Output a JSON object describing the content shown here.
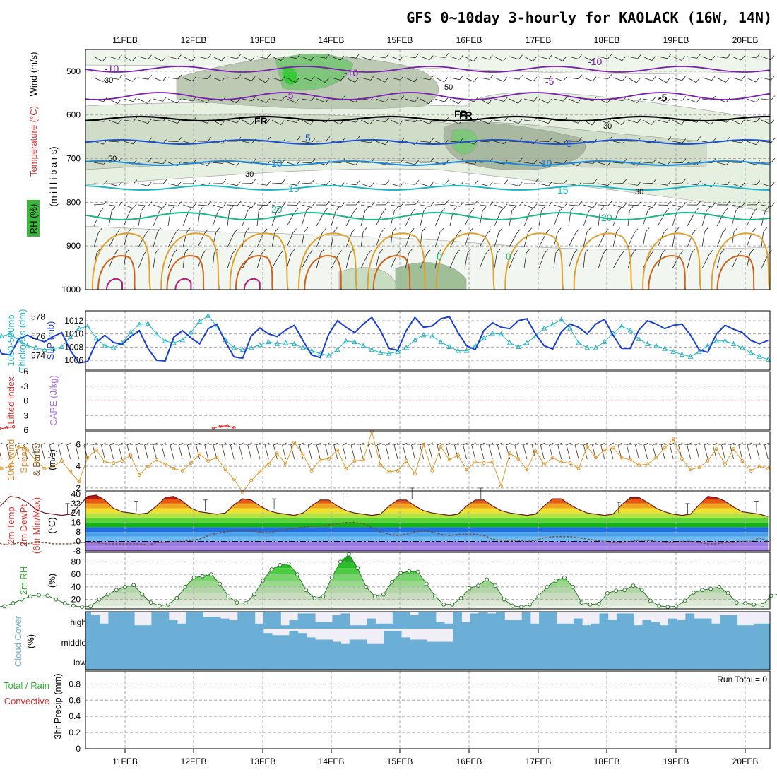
{
  "title": "GFS 0~10day 3-hourly for KAOLACK (16W, 14N)",
  "colors": {
    "purple": "#7a1fb0",
    "blue": "#1b4fd0",
    "midblue": "#1f88d8",
    "cyan": "#1fb4c4",
    "teal": "#19b889",
    "orange": "#e0a030",
    "darkorange": "#d06018",
    "magenta": "#c0187a",
    "slp": "#1b3fd0",
    "thickness": "#28b4c4",
    "wind10": "#e09a30",
    "rh": "#2db82d",
    "cloud": "#6baed6",
    "cloudbg": "#f0eff8",
    "lifted": "#e03030",
    "cape": "#b070e0"
  },
  "chart_data": [
    {
      "type": "contour",
      "panel": "upper-air cross section",
      "ylabels": [
        "Wind (m/s)",
        "Temperature (°C)",
        "RH (%)",
        "(m i l l i b a r s)"
      ],
      "yticks": [
        "500",
        "600",
        "700",
        "800",
        "900",
        "1000"
      ],
      "ylim": [
        1000,
        450
      ],
      "contour_labels": [
        "-10",
        "-10",
        "-10",
        "-5",
        "-5",
        "-5",
        "FR",
        "FR",
        "FR",
        "5",
        "5",
        "10",
        "10",
        "15",
        "15",
        "20",
        "20",
        "30",
        "30",
        "30",
        "30",
        "50",
        "50",
        "0",
        "0"
      ]
    },
    {
      "type": "line",
      "panel": "thickness and sea level pressure",
      "ylabels": [
        "1000-500mb",
        "Thickness (dm)",
        "SLP (mb)"
      ],
      "yticks_left": [
        "578",
        "576",
        "574"
      ],
      "yticks_right": [
        "1012",
        "1010",
        "1008",
        "1006"
      ],
      "ylim_thickness": [
        572.5,
        578.6
      ],
      "ylim_slp": [
        1004.5,
        1013.5
      ],
      "series": [
        {
          "name": "SLP (mb)",
          "values": [
            1009.9,
            1007,
            1006.8,
            1009.2,
            1009.8,
            1009.2,
            1008.8,
            1009.6,
            1010.2,
            1007.5,
            1005.6,
            1005.8,
            1008.7,
            1009.8,
            1008.7,
            1008.4,
            1009.6,
            1010.5,
            1007.8,
            1006,
            1005.9,
            1009.5,
            1010.5,
            1009.4,
            1008.5,
            1010.8,
            1011.5,
            1008.8,
            1006.5,
            1006.3,
            1009.7,
            1010.9,
            1010,
            1009.6,
            1010.6,
            1011.3,
            1009,
            1006.8,
            1006.4,
            1010,
            1012,
            1011,
            1010.2,
            1011.5,
            1012.5,
            1010.5,
            1007.8,
            1007.5,
            1010.5,
            1012.5,
            1011,
            1011.2,
            1012.3,
            1012.6,
            1010.2,
            1008.2,
            1007.6,
            1010.5,
            1011.7,
            1011,
            1010.8,
            1012,
            1012.3,
            1010,
            1008.2,
            1007.7,
            1010.3,
            1011.5,
            1011,
            1010,
            1011.5,
            1012.2,
            1009.8,
            1007.8,
            1007.8,
            1010.6,
            1012,
            1011.5,
            1010.8,
            1011.3,
            1011.5,
            1009.8,
            1007.6,
            1007.2,
            1010,
            1011.3,
            1010.7,
            1010.2,
            1009,
            1008.5,
            1009
          ]
        },
        {
          "name": "1000-500mb Thickness (dm)",
          "values": [
            575.0,
            576.0,
            576.2,
            575.6,
            575.0,
            574.8,
            574.6,
            574.7,
            574.9,
            575.9,
            576.8,
            577.0,
            575.8,
            575.0,
            574.8,
            575.3,
            576.4,
            577.2,
            577.3,
            576.2,
            575.5,
            575.3,
            575.6,
            576.4,
            577.5,
            578.1,
            577.0,
            575.6,
            574.8,
            574.6,
            574.8,
            575.1,
            575.4,
            575.2,
            575.3,
            575.2,
            574.8,
            574.5,
            574.2,
            574.0,
            574.6,
            575.5,
            575.4,
            575.0,
            574.6,
            574.3,
            574.2,
            574.4,
            574.8,
            575.6,
            576.1,
            576.0,
            575.4,
            574.9,
            574.5,
            574.5,
            575.0,
            575.8,
            576.3,
            576.2,
            575.3,
            574.9,
            575.3,
            576.0,
            576.8,
            577.2,
            577.7,
            576.8,
            575.3,
            574.8,
            574.8,
            575.4,
            576.3,
            577.0,
            576.6,
            575.7,
            575.2,
            575.0,
            574.7,
            574.4,
            574.1,
            573.9,
            574.4,
            575.0,
            575.5,
            575.5,
            575.2,
            574.8,
            574.3,
            573.9,
            573.6
          ]
        }
      ]
    },
    {
      "type": "line",
      "panel": "stability",
      "ylabels": [
        "Lifted Index",
        "CAPE (J/kg)"
      ],
      "yticks": [
        "-6",
        "-3",
        "0",
        "3",
        "6"
      ],
      "ylim": [
        6,
        -6
      ],
      "series": [
        {
          "name": "Lifted Index",
          "segments": [
            [
              [
                0.1,
                5.7
              ],
              [
                0.2,
                5.5
              ],
              [
                0.3,
                5.3
              ]
            ],
            [
              [
                3.2,
                5.6
              ],
              [
                3.3,
                5.2
              ],
              [
                3.4,
                5.1
              ],
              [
                3.5,
                5.5
              ]
            ]
          ]
        }
      ]
    },
    {
      "type": "line",
      "panel": "10m wind",
      "ylabels": [
        "10m Wind",
        "Speed",
        "& Barbs",
        "(m/s)"
      ],
      "yticks": [
        "2",
        "4",
        "6"
      ],
      "ylim": [
        1.8,
        7.2
      ],
      "series": [
        {
          "name": "10m Wind Speed",
          "values": [
            4.8,
            3.8,
            4,
            5.8,
            5.5,
            4.5,
            3.8,
            4,
            4.5,
            3.5,
            2.6,
            4.8,
            5.5,
            4.4,
            4.3,
            4.5,
            5,
            3.2,
            4,
            4.6,
            4.2,
            3.8,
            3.6,
            4.3,
            5.1,
            4.5,
            4.8,
            3.7,
            2.8,
            1.6,
            2.7,
            3.5,
            4.2,
            5.2,
            4.2,
            6.2,
            5.1,
            3.6,
            4.6,
            4.7,
            5.5,
            3.8,
            4.5,
            4.6,
            7.2,
            4.1,
            3.5,
            3.6,
            4.5,
            3.3,
            6,
            3.6,
            5.8,
            4.6,
            5,
            3.7,
            4.4,
            4.3,
            4.4,
            2.2,
            5.2,
            4.7,
            3.7,
            5.4,
            4.2,
            4.8,
            4.4,
            4.3,
            3.8,
            5.8,
            4.8,
            5.5,
            5.7,
            4.8,
            4.6,
            4.1,
            4.2,
            4.8,
            5.7,
            6.5,
            4.7,
            3.7,
            3.9,
            4.5,
            5.6,
            4.2,
            5.6,
            4.5,
            3.6,
            4,
            3.8
          ]
        }
      ]
    },
    {
      "type": "area",
      "panel": "2m temperature",
      "ylabels": [
        "2m Temp",
        "2m DewPt",
        "(6hr Min/Max)",
        "(°C)"
      ],
      "yticks": [
        "40",
        "32",
        "24",
        "16",
        "8",
        "0",
        "-8"
      ],
      "ylim": [
        -8,
        42
      ],
      "series": [
        {
          "name": "2m Temp",
          "values": [
            23,
            31,
            38,
            37,
            33,
            27,
            24,
            23,
            22,
            23,
            30,
            38,
            39,
            35,
            28,
            25,
            24,
            23,
            24,
            30,
            37,
            38,
            34,
            28,
            25,
            24,
            23,
            24,
            31,
            36,
            35,
            30,
            26,
            24,
            23,
            22,
            24,
            30,
            35,
            35,
            30,
            26,
            24,
            23,
            22,
            23,
            30,
            35,
            35,
            30,
            26,
            24,
            23,
            22,
            23,
            30,
            35,
            35,
            30,
            26,
            24,
            23,
            22,
            23,
            30,
            36,
            36,
            31,
            27,
            24,
            23,
            22,
            23,
            31,
            37,
            37,
            33,
            28,
            25,
            23,
            22,
            23,
            31,
            38,
            37,
            34,
            29,
            25,
            24,
            23,
            21
          ]
        },
        {
          "name": "2m DewPt",
          "values": [
            0,
            -2,
            -3,
            -1,
            -2,
            -1,
            -1,
            -2,
            -2,
            -2,
            -1,
            -1,
            -1,
            -2,
            -2,
            -2,
            -2,
            -2,
            -3,
            -1,
            -1,
            0,
            0,
            1,
            2,
            5,
            7,
            8,
            9,
            9,
            9,
            8,
            7,
            9,
            10,
            11,
            12,
            13,
            13,
            14,
            15,
            16,
            16,
            15,
            12,
            8,
            6,
            5,
            6,
            8,
            9,
            8,
            6,
            5,
            6,
            6,
            6,
            5,
            2,
            1,
            1,
            1,
            0,
            1,
            3,
            4,
            4,
            4,
            3,
            2,
            1,
            0,
            -1,
            -1,
            0,
            1,
            1,
            0,
            -1,
            -1,
            0,
            0,
            -1,
            -2,
            -2,
            -1,
            -1,
            0,
            0,
            3,
            0
          ]
        }
      ]
    },
    {
      "type": "area",
      "panel": "2m relative humidity",
      "ylabels": [
        "2m RH",
        "(%)"
      ],
      "yticks": [
        "20",
        "40",
        "60",
        "80"
      ],
      "ylim": [
        5,
        95
      ],
      "series": [
        {
          "name": "2m RH",
          "values": [
            10,
            8,
            9,
            14,
            20,
            25,
            27,
            26,
            20,
            14,
            10,
            8,
            9,
            20,
            28,
            35,
            40,
            43,
            28,
            15,
            10,
            12,
            22,
            40,
            55,
            57,
            60,
            45,
            25,
            15,
            14,
            28,
            50,
            68,
            75,
            77,
            60,
            35,
            22,
            25,
            55,
            80,
            92,
            70,
            40,
            25,
            28,
            48,
            62,
            65,
            64,
            45,
            25,
            12,
            12,
            22,
            38,
            42,
            52,
            42,
            20,
            10,
            8,
            12,
            25,
            40,
            50,
            55,
            40,
            15,
            12,
            13,
            30,
            34,
            35,
            42,
            35,
            18,
            10,
            8,
            9,
            18,
            31,
            35,
            37,
            40,
            30,
            15,
            14,
            12,
            11,
            26,
            29
          ]
        }
      ]
    },
    {
      "type": "bar",
      "panel": "cloud cover",
      "ylabels": [
        "Cloud Cover",
        "(%)"
      ],
      "levels": [
        "high",
        "middle",
        "low"
      ],
      "series": [
        {
          "name": "high",
          "values": [
            0.8,
            0.3,
            1,
            1,
            1,
            0.2,
            0.2,
            1,
            1,
            0.5,
            0.3,
            1,
            1,
            0.7,
            0.7,
            0.6,
            0.5,
            1,
            1,
            0.3,
            1,
            1,
            0.2,
            0.5,
            0.9,
            0.9,
            0.4,
            0.4,
            0.8,
            0.9,
            0.2,
            0.2,
            0.6,
            0.3,
            0.3,
            1,
            1,
            0.8,
            1,
            1,
            0.4,
            0.3,
            1,
            0.4,
            0.9,
            1,
            0.9,
            1,
            0.5,
            0.5,
            1,
            0.3,
            1,
            1,
            0.3,
            0.3,
            0.6,
            0.2,
            0.3,
            0.9,
            0.5,
            0.9,
            0.9,
            0.2,
            0.5,
            0.4,
            0.2,
            0.6,
            0.5,
            0.9,
            0.6,
            0.6,
            0.3,
            0.8,
            0.8,
            0.2,
            0.2,
            0.3,
            0.3,
            1,
            0.2,
            0.9,
            0.6,
            0.3,
            0.3,
            0.3,
            0.3,
            0.3,
            0.9,
            1,
            0.3
          ]
        },
        {
          "name": "middle",
          "values": [
            1,
            1,
            1,
            1,
            1,
            1,
            1,
            1,
            1,
            1,
            1,
            1,
            1,
            1,
            1,
            1,
            1,
            1,
            1,
            1,
            0.8,
            0.7,
            0.7,
            0.9,
            0.8,
            0.6,
            0.5,
            0.5,
            0.4,
            0.3,
            0.5,
            0.5,
            0.3,
            0.3,
            0.9,
            0.9,
            0.6,
            0.5,
            0.5,
            0.4,
            0.4,
            0.4,
            1,
            1,
            1,
            1,
            1,
            1,
            1,
            1,
            1,
            1,
            1,
            1,
            1,
            1,
            1,
            1,
            1,
            1,
            1,
            1,
            1,
            1,
            1,
            1,
            1,
            1,
            1,
            1,
            1,
            1,
            1,
            1,
            1,
            1,
            1,
            1,
            1,
            1,
            1,
            1,
            1,
            1,
            1,
            1,
            1,
            1,
            1,
            1,
            1
          ]
        },
        {
          "name": "low",
          "values": [
            1,
            1,
            1,
            1,
            1,
            1,
            1,
            1,
            1,
            1,
            1,
            1,
            1,
            1,
            1,
            1,
            1,
            1,
            1,
            1,
            1,
            1,
            1,
            1,
            1,
            1,
            1,
            1,
            1,
            1,
            1,
            1,
            1,
            1,
            1,
            1,
            1,
            1,
            1,
            1,
            1,
            1,
            1,
            1,
            1,
            1,
            1,
            1,
            1,
            1,
            1,
            1,
            1,
            1,
            1,
            1,
            1,
            1,
            1,
            1,
            1,
            1,
            1,
            1,
            1,
            1,
            1,
            1,
            1,
            1,
            1,
            1,
            1,
            1,
            1,
            1,
            1,
            1,
            1,
            1,
            1,
            1,
            1,
            1,
            1,
            1,
            1,
            1,
            1,
            1,
            1
          ]
        }
      ]
    },
    {
      "type": "bar",
      "panel": "precipitation",
      "ylabels": [
        "Total / Rain",
        "Convective",
        "3hr Precip (mm)"
      ],
      "yticks": [
        "0",
        "0.2",
        "0.4",
        "0.6",
        "0.8"
      ],
      "ylim": [
        0,
        0.96
      ],
      "run_total": "Run Total = 0",
      "series": [
        {
          "name": "Total / Rain",
          "values": []
        }
      ]
    }
  ],
  "x_axis": {
    "date_labels": [
      "11FEB",
      "12FEB",
      "13FEB",
      "14FEB",
      "15FEB",
      "16FEB",
      "17FEB",
      "18FEB",
      "19FEB",
      "20FEB"
    ]
  }
}
